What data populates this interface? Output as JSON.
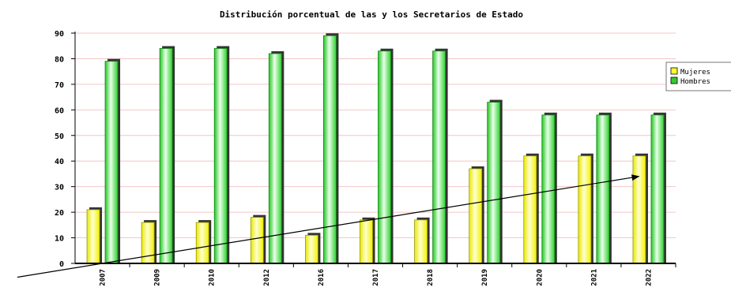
{
  "chart_data": {
    "type": "bar",
    "title": "Distribución porcentual de las y los Secretarios de Estado",
    "xlabel": "",
    "ylabel": "",
    "ylim": [
      0,
      90
    ],
    "yticks": [
      0,
      10,
      20,
      30,
      40,
      50,
      60,
      70,
      80,
      90
    ],
    "grid": true,
    "legend_position": "right",
    "categories": [
      "2007",
      "2009",
      "2010",
      "2012",
      "2016",
      "2017",
      "2018",
      "2019",
      "2020",
      "2021",
      "2022"
    ],
    "series": [
      {
        "name": "Mujeres",
        "color": "#ffff33",
        "values": [
          21,
          16,
          16,
          18,
          11,
          17,
          17,
          37,
          42,
          42,
          42
        ]
      },
      {
        "name": "Hombres",
        "color": "#33cc33",
        "values": [
          79,
          84,
          84,
          82,
          89,
          83,
          83,
          63,
          58,
          58,
          58
        ]
      }
    ],
    "annotation": {
      "type": "arrow",
      "from": [
        "2007",
        0
      ],
      "to": [
        "2022",
        34
      ]
    }
  }
}
